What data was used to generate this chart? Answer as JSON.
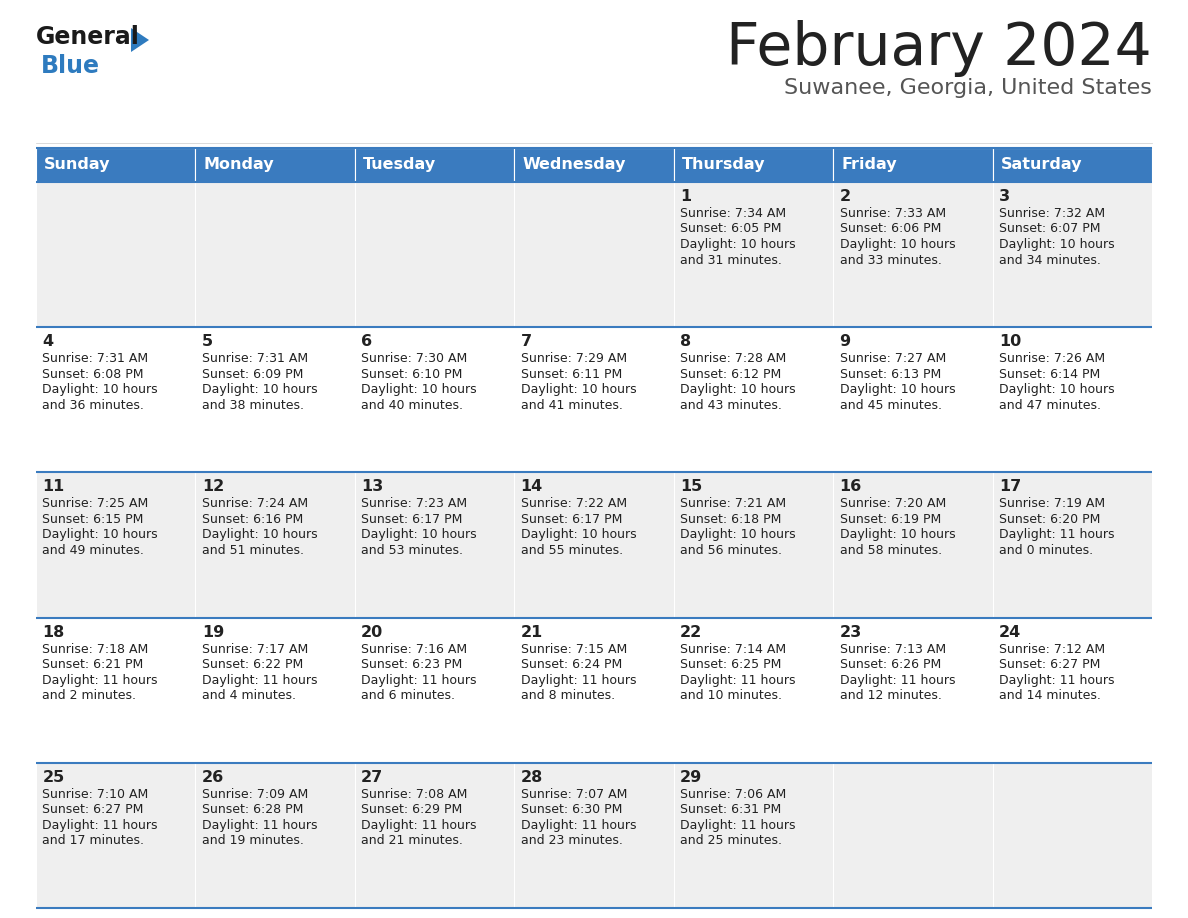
{
  "title": "February 2024",
  "subtitle": "Suwanee, Georgia, United States",
  "header_bg_color": "#3a7bbf",
  "header_text_color": "#ffffff",
  "row_bg_odd": "#efefef",
  "row_bg_even": "#ffffff",
  "border_color": "#3a7bbf",
  "day_names": [
    "Sunday",
    "Monday",
    "Tuesday",
    "Wednesday",
    "Thursday",
    "Friday",
    "Saturday"
  ],
  "cell_text_color": "#222222",
  "day_num_color": "#222222",
  "title_color": "#222222",
  "subtitle_color": "#555555",
  "logo_general_color": "#1a1a1a",
  "logo_blue_color": "#2e7bbf",
  "weeks": [
    [
      {
        "day": "",
        "sunrise": "",
        "sunset": "",
        "daylight_h": "",
        "daylight_m": ""
      },
      {
        "day": "",
        "sunrise": "",
        "sunset": "",
        "daylight_h": "",
        "daylight_m": ""
      },
      {
        "day": "",
        "sunrise": "",
        "sunset": "",
        "daylight_h": "",
        "daylight_m": ""
      },
      {
        "day": "",
        "sunrise": "",
        "sunset": "",
        "daylight_h": "",
        "daylight_m": ""
      },
      {
        "day": "1",
        "sunrise": "7:34 AM",
        "sunset": "6:05 PM",
        "daylight_h": "10 hours",
        "daylight_m": "and 31 minutes."
      },
      {
        "day": "2",
        "sunrise": "7:33 AM",
        "sunset": "6:06 PM",
        "daylight_h": "10 hours",
        "daylight_m": "and 33 minutes."
      },
      {
        "day": "3",
        "sunrise": "7:32 AM",
        "sunset": "6:07 PM",
        "daylight_h": "10 hours",
        "daylight_m": "and 34 minutes."
      }
    ],
    [
      {
        "day": "4",
        "sunrise": "7:31 AM",
        "sunset": "6:08 PM",
        "daylight_h": "10 hours",
        "daylight_m": "and 36 minutes."
      },
      {
        "day": "5",
        "sunrise": "7:31 AM",
        "sunset": "6:09 PM",
        "daylight_h": "10 hours",
        "daylight_m": "and 38 minutes."
      },
      {
        "day": "6",
        "sunrise": "7:30 AM",
        "sunset": "6:10 PM",
        "daylight_h": "10 hours",
        "daylight_m": "and 40 minutes."
      },
      {
        "day": "7",
        "sunrise": "7:29 AM",
        "sunset": "6:11 PM",
        "daylight_h": "10 hours",
        "daylight_m": "and 41 minutes."
      },
      {
        "day": "8",
        "sunrise": "7:28 AM",
        "sunset": "6:12 PM",
        "daylight_h": "10 hours",
        "daylight_m": "and 43 minutes."
      },
      {
        "day": "9",
        "sunrise": "7:27 AM",
        "sunset": "6:13 PM",
        "daylight_h": "10 hours",
        "daylight_m": "and 45 minutes."
      },
      {
        "day": "10",
        "sunrise": "7:26 AM",
        "sunset": "6:14 PM",
        "daylight_h": "10 hours",
        "daylight_m": "and 47 minutes."
      }
    ],
    [
      {
        "day": "11",
        "sunrise": "7:25 AM",
        "sunset": "6:15 PM",
        "daylight_h": "10 hours",
        "daylight_m": "and 49 minutes."
      },
      {
        "day": "12",
        "sunrise": "7:24 AM",
        "sunset": "6:16 PM",
        "daylight_h": "10 hours",
        "daylight_m": "and 51 minutes."
      },
      {
        "day": "13",
        "sunrise": "7:23 AM",
        "sunset": "6:17 PM",
        "daylight_h": "10 hours",
        "daylight_m": "and 53 minutes."
      },
      {
        "day": "14",
        "sunrise": "7:22 AM",
        "sunset": "6:17 PM",
        "daylight_h": "10 hours",
        "daylight_m": "and 55 minutes."
      },
      {
        "day": "15",
        "sunrise": "7:21 AM",
        "sunset": "6:18 PM",
        "daylight_h": "10 hours",
        "daylight_m": "and 56 minutes."
      },
      {
        "day": "16",
        "sunrise": "7:20 AM",
        "sunset": "6:19 PM",
        "daylight_h": "10 hours",
        "daylight_m": "and 58 minutes."
      },
      {
        "day": "17",
        "sunrise": "7:19 AM",
        "sunset": "6:20 PM",
        "daylight_h": "11 hours",
        "daylight_m": "and 0 minutes."
      }
    ],
    [
      {
        "day": "18",
        "sunrise": "7:18 AM",
        "sunset": "6:21 PM",
        "daylight_h": "11 hours",
        "daylight_m": "and 2 minutes."
      },
      {
        "day": "19",
        "sunrise": "7:17 AM",
        "sunset": "6:22 PM",
        "daylight_h": "11 hours",
        "daylight_m": "and 4 minutes."
      },
      {
        "day": "20",
        "sunrise": "7:16 AM",
        "sunset": "6:23 PM",
        "daylight_h": "11 hours",
        "daylight_m": "and 6 minutes."
      },
      {
        "day": "21",
        "sunrise": "7:15 AM",
        "sunset": "6:24 PM",
        "daylight_h": "11 hours",
        "daylight_m": "and 8 minutes."
      },
      {
        "day": "22",
        "sunrise": "7:14 AM",
        "sunset": "6:25 PM",
        "daylight_h": "11 hours",
        "daylight_m": "and 10 minutes."
      },
      {
        "day": "23",
        "sunrise": "7:13 AM",
        "sunset": "6:26 PM",
        "daylight_h": "11 hours",
        "daylight_m": "and 12 minutes."
      },
      {
        "day": "24",
        "sunrise": "7:12 AM",
        "sunset": "6:27 PM",
        "daylight_h": "11 hours",
        "daylight_m": "and 14 minutes."
      }
    ],
    [
      {
        "day": "25",
        "sunrise": "7:10 AM",
        "sunset": "6:27 PM",
        "daylight_h": "11 hours",
        "daylight_m": "and 17 minutes."
      },
      {
        "day": "26",
        "sunrise": "7:09 AM",
        "sunset": "6:28 PM",
        "daylight_h": "11 hours",
        "daylight_m": "and 19 minutes."
      },
      {
        "day": "27",
        "sunrise": "7:08 AM",
        "sunset": "6:29 PM",
        "daylight_h": "11 hours",
        "daylight_m": "and 21 minutes."
      },
      {
        "day": "28",
        "sunrise": "7:07 AM",
        "sunset": "6:30 PM",
        "daylight_h": "11 hours",
        "daylight_m": "and 23 minutes."
      },
      {
        "day": "29",
        "sunrise": "7:06 AM",
        "sunset": "6:31 PM",
        "daylight_h": "11 hours",
        "daylight_m": "and 25 minutes."
      },
      {
        "day": "",
        "sunrise": "",
        "sunset": "",
        "daylight_h": "",
        "daylight_m": ""
      },
      {
        "day": "",
        "sunrise": "",
        "sunset": "",
        "daylight_h": "",
        "daylight_m": ""
      }
    ]
  ]
}
